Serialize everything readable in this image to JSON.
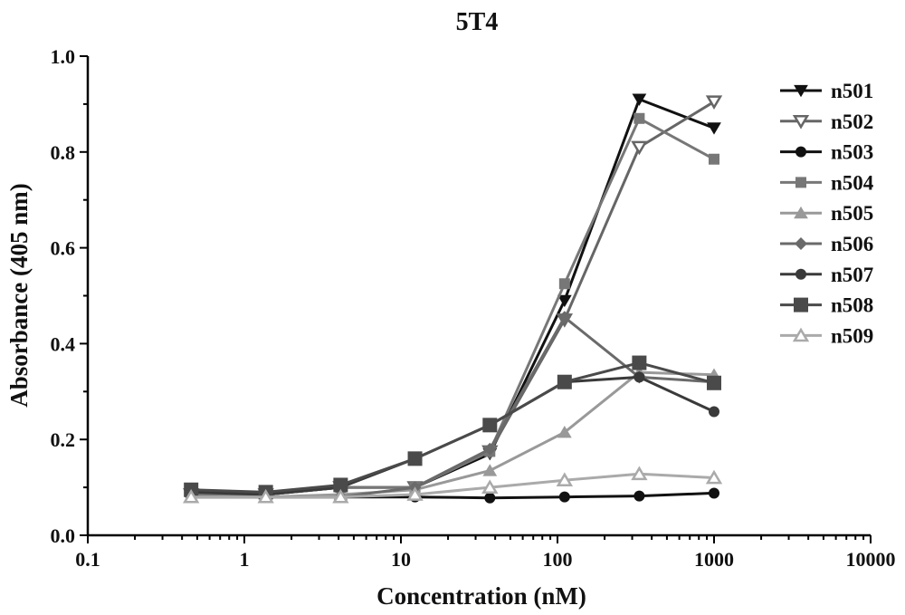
{
  "chart_data": {
    "type": "line",
    "title": "5T4",
    "xlabel": "Concentration (nM)",
    "ylabel": "Absorbance (405 nm)",
    "x_scale": "log",
    "xlim": [
      0.1,
      10000
    ],
    "ylim": [
      0.0,
      1.0
    ],
    "x_ticks": [
      "0.1",
      "1",
      "10",
      "100",
      "1000",
      "10000"
    ],
    "y_ticks": [
      "0.0",
      "0.2",
      "0.4",
      "0.6",
      "0.8",
      "1.0"
    ],
    "legend_position": "right",
    "grid": false,
    "x": [
      0.457,
      1.37,
      4.12,
      12.3,
      37.0,
      111,
      333,
      1000
    ],
    "series": [
      {
        "name": "n501",
        "color": "#111111",
        "marker": "triangle-down",
        "values": [
          0.085,
          0.085,
          0.1,
          0.1,
          0.17,
          0.49,
          0.91,
          0.85
        ]
      },
      {
        "name": "n502",
        "color": "#666666",
        "marker": "triangle-down-open",
        "values": [
          0.085,
          0.085,
          0.1,
          0.1,
          0.175,
          0.45,
          0.81,
          0.905
        ]
      },
      {
        "name": "n503",
        "color": "#111111",
        "marker": "circle",
        "values": [
          0.08,
          0.08,
          0.08,
          0.08,
          0.078,
          0.08,
          0.082,
          0.088
        ]
      },
      {
        "name": "n504",
        "color": "#777777",
        "marker": "square",
        "values": [
          0.085,
          0.085,
          0.1,
          0.1,
          0.175,
          0.525,
          0.87,
          0.785
        ]
      },
      {
        "name": "n505",
        "color": "#999999",
        "marker": "triangle-up",
        "values": [
          0.08,
          0.08,
          0.085,
          0.095,
          0.135,
          0.215,
          0.34,
          0.335
        ]
      },
      {
        "name": "n506",
        "color": "#6a6a6a",
        "marker": "diamond",
        "values": [
          0.08,
          0.08,
          0.08,
          0.1,
          0.18,
          0.455,
          0.33,
          0.32
        ]
      },
      {
        "name": "n507",
        "color": "#3a3a3a",
        "marker": "circle",
        "values": [
          0.09,
          0.085,
          0.1,
          0.16,
          0.23,
          0.32,
          0.33,
          0.258
        ]
      },
      {
        "name": "n508",
        "color": "#4a4a4a",
        "marker": "square-large",
        "values": [
          0.095,
          0.09,
          0.105,
          0.16,
          0.23,
          0.32,
          0.36,
          0.318
        ]
      },
      {
        "name": "n509",
        "color": "#aaaaaa",
        "marker": "triangle-up-open",
        "values": [
          0.08,
          0.08,
          0.08,
          0.085,
          0.1,
          0.115,
          0.128,
          0.12
        ]
      }
    ]
  }
}
